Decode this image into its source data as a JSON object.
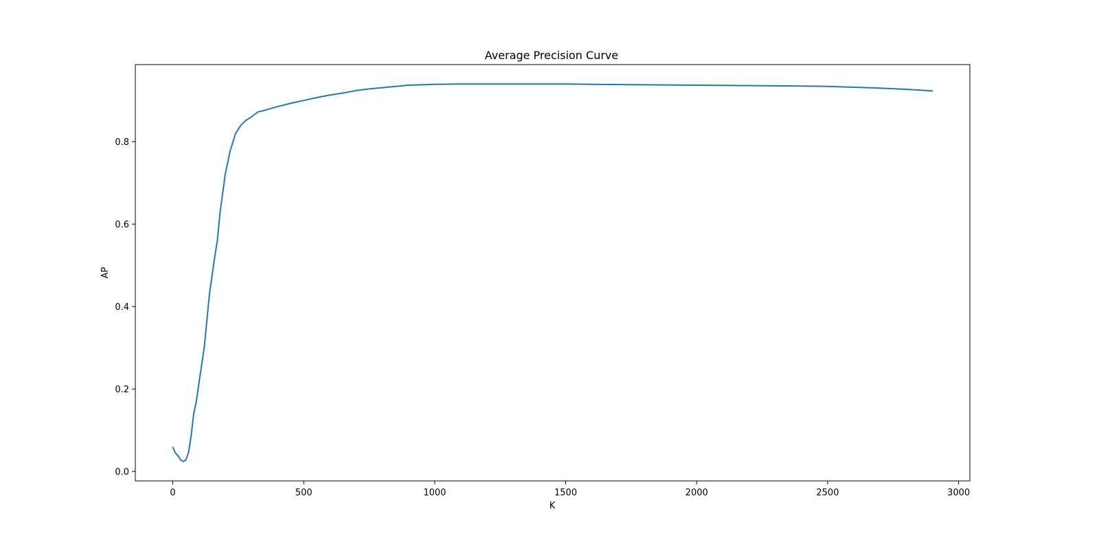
{
  "chart_data": {
    "type": "line",
    "title": "Average Precision Curve",
    "xlabel": "K",
    "ylabel": "AP",
    "xlim": [
      -143,
      3043
    ],
    "ylim": [
      -0.023,
      0.987
    ],
    "xticks": [
      0,
      500,
      1000,
      1500,
      2000,
      2500,
      3000
    ],
    "yticks": [
      0.0,
      0.2,
      0.4,
      0.6,
      0.8
    ],
    "xtick_labels": [
      "0",
      "500",
      "1000",
      "1500",
      "2000",
      "2500",
      "3000"
    ],
    "ytick_labels": [
      "0.0",
      "0.2",
      "0.4",
      "0.6",
      "0.8"
    ],
    "grid": false,
    "legend": false,
    "series": [
      {
        "color": "#1f77b4",
        "x": [
          1,
          10,
          20,
          30,
          40,
          50,
          60,
          70,
          80,
          90,
          100,
          120,
          140,
          160,
          170,
          180,
          200,
          220,
          240,
          260,
          280,
          300,
          325,
          350,
          400,
          450,
          500,
          550,
          600,
          650,
          700,
          750,
          800,
          900,
          1000,
          1100,
          1200,
          1300,
          1400,
          1500,
          1600,
          1800,
          2000,
          2200,
          2400,
          2500,
          2600,
          2700,
          2800,
          2900
        ],
        "y": [
          0.058,
          0.045,
          0.038,
          0.028,
          0.024,
          0.028,
          0.045,
          0.085,
          0.14,
          0.17,
          0.215,
          0.3,
          0.43,
          0.52,
          0.56,
          0.625,
          0.72,
          0.78,
          0.82,
          0.84,
          0.852,
          0.86,
          0.872,
          0.876,
          0.885,
          0.893,
          0.9,
          0.907,
          0.913,
          0.918,
          0.924,
          0.928,
          0.931,
          0.937,
          0.939,
          0.94,
          0.94,
          0.94,
          0.94,
          0.94,
          0.939,
          0.938,
          0.937,
          0.936,
          0.935,
          0.934,
          0.932,
          0.93,
          0.927,
          0.923
        ]
      }
    ]
  }
}
